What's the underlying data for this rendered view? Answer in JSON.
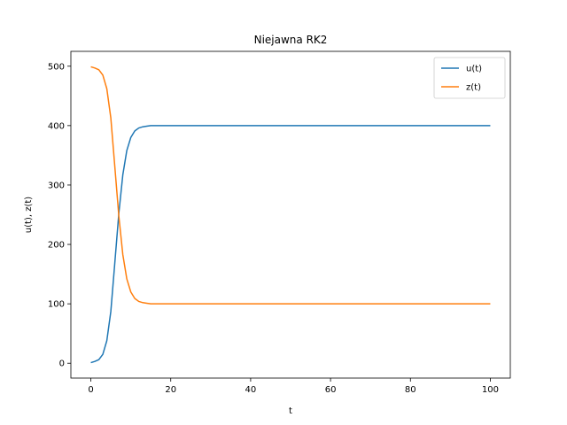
{
  "chart_data": {
    "type": "line",
    "title": "Niejawna RK2",
    "xlabel": "t",
    "ylabel": "u(t), z(t)",
    "xlim": [
      -5,
      105
    ],
    "ylim": [
      -25,
      525
    ],
    "x_ticks": [
      0,
      20,
      40,
      60,
      80,
      100
    ],
    "y_ticks": [
      0,
      100,
      200,
      300,
      400,
      500
    ],
    "grid": false,
    "legend_position": "top-right",
    "series": [
      {
        "name": "u(t)",
        "color": "#1f77b4",
        "x": [
          0,
          1,
          2,
          3,
          4,
          5,
          6,
          7,
          8,
          9,
          10,
          11,
          12,
          13,
          14,
          15,
          16,
          17,
          18,
          20,
          25,
          30,
          40,
          50,
          60,
          70,
          80,
          90,
          100
        ],
        "y": [
          1,
          3,
          6,
          15,
          38,
          87,
          169,
          252,
          317,
          358,
          380,
          391,
          396,
          398,
          399,
          400,
          400,
          400,
          400,
          400,
          400,
          400,
          400,
          400,
          400,
          400,
          400,
          400,
          400
        ]
      },
      {
        "name": "z(t)",
        "color": "#ff7f0e",
        "x": [
          0,
          1,
          2,
          3,
          4,
          5,
          6,
          7,
          8,
          9,
          10,
          11,
          12,
          13,
          14,
          15,
          16,
          17,
          18,
          20,
          25,
          30,
          40,
          50,
          60,
          70,
          80,
          90,
          100
        ],
        "y": [
          499,
          497,
          494,
          485,
          462,
          413,
          331,
          248,
          183,
          142,
          120,
          109,
          104,
          102,
          101,
          100,
          100,
          100,
          100,
          100,
          100,
          100,
          100,
          100,
          100,
          100,
          100,
          100,
          100
        ]
      }
    ]
  }
}
